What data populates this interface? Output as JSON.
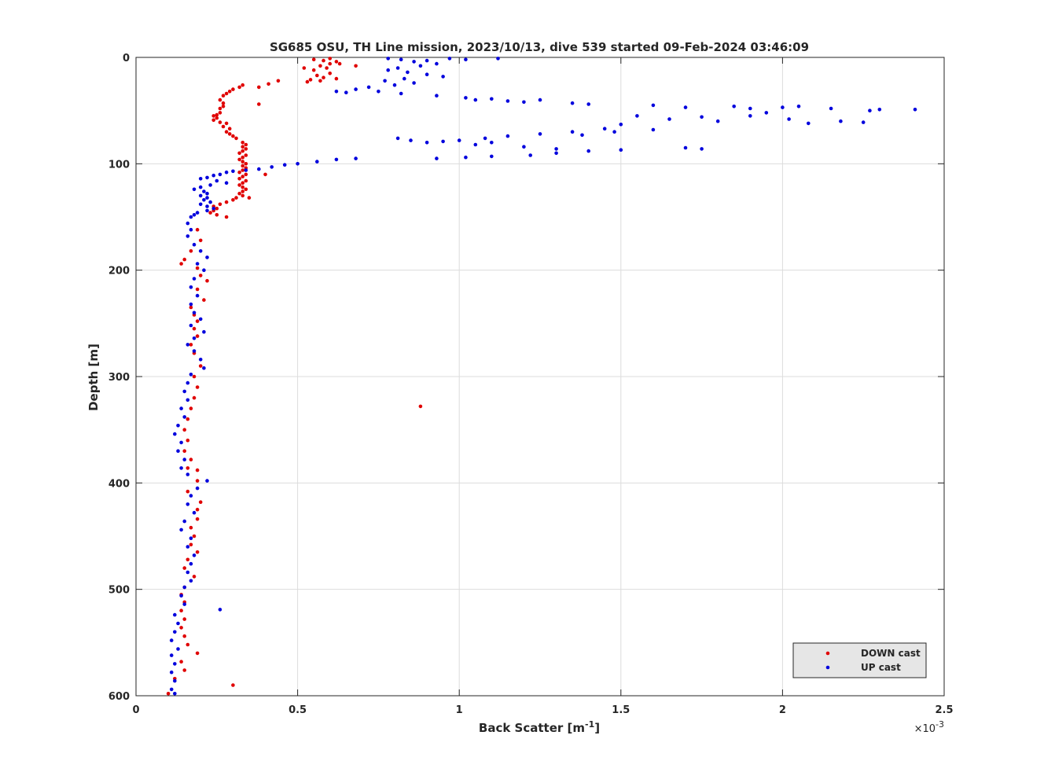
{
  "chart_data": {
    "type": "scatter",
    "title": "SG685 OSU, TH Line mission, 2023/10/13, dive 539 started 09-Feb-2024 03:46:09",
    "xlabel": "Back Scatter [m",
    "xlabel_sup": "-1",
    "xlabel_close": "]",
    "ylabel": "Depth [m]",
    "x_multiplier_base": "×10",
    "x_multiplier_exp": "-3",
    "xlim": [
      0,
      2.5
    ],
    "ylim": [
      0,
      600
    ],
    "y_reversed": true,
    "xticks": [
      0,
      0.5,
      1,
      1.5,
      2,
      2.5
    ],
    "xtick_labels": [
      "0",
      "0.5",
      "1",
      "1.5",
      "2",
      "2.5"
    ],
    "yticks": [
      0,
      100,
      200,
      300,
      400,
      500,
      600
    ],
    "ytick_labels": [
      "0",
      "100",
      "200",
      "300",
      "400",
      "500",
      "600"
    ],
    "grid": true,
    "legend_position": "bottom-right",
    "series": [
      {
        "name": "DOWN cast",
        "color": "#e00000",
        "points": [
          [
            0.55,
            2
          ],
          [
            0.58,
            3
          ],
          [
            0.6,
            1
          ],
          [
            0.62,
            4
          ],
          [
            0.6,
            6
          ],
          [
            0.57,
            8
          ],
          [
            0.52,
            10
          ],
          [
            0.55,
            12
          ],
          [
            0.63,
            6
          ],
          [
            0.68,
            8
          ],
          [
            0.59,
            10
          ],
          [
            0.6,
            15
          ],
          [
            0.56,
            17
          ],
          [
            0.58,
            19
          ],
          [
            0.54,
            21
          ],
          [
            0.53,
            23
          ],
          [
            0.57,
            22
          ],
          [
            0.62,
            20
          ],
          [
            0.44,
            22
          ],
          [
            0.41,
            25
          ],
          [
            0.38,
            28
          ],
          [
            0.33,
            26
          ],
          [
            0.32,
            28
          ],
          [
            0.3,
            30
          ],
          [
            0.29,
            32
          ],
          [
            0.28,
            34
          ],
          [
            0.27,
            36
          ],
          [
            0.26,
            40
          ],
          [
            0.27,
            43
          ],
          [
            0.38,
            44
          ],
          [
            0.27,
            46
          ],
          [
            0.26,
            48
          ],
          [
            0.26,
            52
          ],
          [
            0.25,
            54
          ],
          [
            0.24,
            55
          ],
          [
            0.25,
            57
          ],
          [
            0.24,
            59
          ],
          [
            0.26,
            61
          ],
          [
            0.28,
            62
          ],
          [
            0.27,
            65
          ],
          [
            0.29,
            67
          ],
          [
            0.28,
            70
          ],
          [
            0.29,
            72
          ],
          [
            0.3,
            74
          ],
          [
            0.31,
            76
          ],
          [
            0.33,
            80
          ],
          [
            0.34,
            82
          ],
          [
            0.33,
            84
          ],
          [
            0.34,
            86
          ],
          [
            0.33,
            88
          ],
          [
            0.32,
            90
          ],
          [
            0.34,
            92
          ],
          [
            0.33,
            94
          ],
          [
            0.32,
            96
          ],
          [
            0.33,
            98
          ],
          [
            0.34,
            100
          ],
          [
            0.33,
            102
          ],
          [
            0.34,
            104
          ],
          [
            0.33,
            106
          ],
          [
            0.32,
            108
          ],
          [
            0.34,
            110
          ],
          [
            0.33,
            112
          ],
          [
            0.32,
            114
          ],
          [
            0.34,
            116
          ],
          [
            0.33,
            118
          ],
          [
            0.32,
            120
          ],
          [
            0.33,
            122
          ],
          [
            0.34,
            124
          ],
          [
            0.33,
            126
          ],
          [
            0.32,
            128
          ],
          [
            0.33,
            130
          ],
          [
            0.31,
            132
          ],
          [
            0.3,
            134
          ],
          [
            0.28,
            136
          ],
          [
            0.26,
            138
          ],
          [
            0.24,
            140
          ],
          [
            0.25,
            142
          ],
          [
            0.24,
            144
          ],
          [
            0.23,
            146
          ],
          [
            0.25,
            148
          ],
          [
            0.28,
            150
          ],
          [
            0.35,
            132
          ],
          [
            0.4,
            110
          ],
          [
            0.19,
            162
          ],
          [
            0.2,
            172
          ],
          [
            0.17,
            182
          ],
          [
            0.15,
            190
          ],
          [
            0.14,
            194
          ],
          [
            0.19,
            198
          ],
          [
            0.2,
            205
          ],
          [
            0.22,
            210
          ],
          [
            0.19,
            218
          ],
          [
            0.21,
            228
          ],
          [
            0.17,
            235
          ],
          [
            0.18,
            242
          ],
          [
            0.19,
            248
          ],
          [
            0.18,
            255
          ],
          [
            0.19,
            262
          ],
          [
            0.17,
            270
          ],
          [
            0.18,
            278
          ],
          [
            0.2,
            290
          ],
          [
            0.18,
            300
          ],
          [
            0.19,
            310
          ],
          [
            0.18,
            320
          ],
          [
            0.17,
            330
          ],
          [
            0.16,
            340
          ],
          [
            0.15,
            350
          ],
          [
            0.16,
            360
          ],
          [
            0.15,
            370
          ],
          [
            0.17,
            378
          ],
          [
            0.16,
            386
          ],
          [
            0.19,
            388
          ],
          [
            0.19,
            398
          ],
          [
            0.16,
            408
          ],
          [
            0.2,
            418
          ],
          [
            0.19,
            425
          ],
          [
            0.19,
            434
          ],
          [
            0.17,
            442
          ],
          [
            0.18,
            450
          ],
          [
            0.17,
            458
          ],
          [
            0.19,
            465
          ],
          [
            0.16,
            472
          ],
          [
            0.15,
            480
          ],
          [
            0.18,
            488
          ],
          [
            0.15,
            498
          ],
          [
            0.14,
            505
          ],
          [
            0.15,
            512
          ],
          [
            0.14,
            520
          ],
          [
            0.15,
            528
          ],
          [
            0.14,
            536
          ],
          [
            0.15,
            544
          ],
          [
            0.16,
            552
          ],
          [
            0.19,
            560
          ],
          [
            0.14,
            568
          ],
          [
            0.15,
            576
          ],
          [
            0.12,
            584
          ],
          [
            0.3,
            590
          ],
          [
            0.1,
            598
          ],
          [
            0.88,
            328
          ]
        ]
      },
      {
        "name": "UP cast",
        "color": "#0000dd",
        "points": [
          [
            0.78,
            1
          ],
          [
            0.82,
            2
          ],
          [
            0.9,
            3
          ],
          [
            0.97,
            1
          ],
          [
            1.02,
            2
          ],
          [
            1.12,
            1
          ],
          [
            0.86,
            4
          ],
          [
            0.93,
            6
          ],
          [
            0.88,
            8
          ],
          [
            0.81,
            10
          ],
          [
            0.78,
            12
          ],
          [
            0.84,
            14
          ],
          [
            0.9,
            16
          ],
          [
            0.95,
            18
          ],
          [
            0.83,
            20
          ],
          [
            0.77,
            22
          ],
          [
            0.86,
            24
          ],
          [
            0.8,
            26
          ],
          [
            0.72,
            28
          ],
          [
            0.68,
            30
          ],
          [
            0.75,
            32
          ],
          [
            0.65,
            33
          ],
          [
            0.62,
            32
          ],
          [
            0.82,
            34
          ],
          [
            0.93,
            36
          ],
          [
            1.02,
            38
          ],
          [
            1.05,
            40
          ],
          [
            1.1,
            39
          ],
          [
            1.15,
            41
          ],
          [
            1.2,
            42
          ],
          [
            1.25,
            40
          ],
          [
            1.35,
            43
          ],
          [
            1.4,
            44
          ],
          [
            1.6,
            45
          ],
          [
            1.7,
            47
          ],
          [
            1.85,
            46
          ],
          [
            1.9,
            48
          ],
          [
            2.0,
            47
          ],
          [
            2.05,
            46
          ],
          [
            2.15,
            48
          ],
          [
            2.3,
            49
          ],
          [
            2.41,
            49
          ],
          [
            1.55,
            55
          ],
          [
            1.65,
            58
          ],
          [
            1.75,
            56
          ],
          [
            1.8,
            60
          ],
          [
            1.9,
            55
          ],
          [
            1.95,
            52
          ],
          [
            2.02,
            58
          ],
          [
            2.08,
            62
          ],
          [
            2.18,
            60
          ],
          [
            2.25,
            61
          ],
          [
            2.27,
            50
          ],
          [
            1.5,
            63
          ],
          [
            1.45,
            67
          ],
          [
            1.35,
            70
          ],
          [
            1.25,
            72
          ],
          [
            1.15,
            74
          ],
          [
            1.08,
            76
          ],
          [
            1.0,
            78
          ],
          [
            0.95,
            79
          ],
          [
            0.9,
            80
          ],
          [
            0.85,
            78
          ],
          [
            0.81,
            76
          ],
          [
            1.1,
            80
          ],
          [
            1.05,
            82
          ],
          [
            1.2,
            84
          ],
          [
            1.3,
            86
          ],
          [
            1.4,
            88
          ],
          [
            1.5,
            87
          ],
          [
            1.7,
            85
          ],
          [
            1.75,
            86
          ],
          [
            1.6,
            68
          ],
          [
            1.48,
            70
          ],
          [
            1.38,
            73
          ],
          [
            1.3,
            90
          ],
          [
            1.22,
            92
          ],
          [
            1.1,
            93
          ],
          [
            1.02,
            94
          ],
          [
            0.93,
            95
          ],
          [
            0.68,
            95
          ],
          [
            0.62,
            96
          ],
          [
            0.56,
            98
          ],
          [
            0.5,
            100
          ],
          [
            0.46,
            101
          ],
          [
            0.42,
            103
          ],
          [
            0.38,
            105
          ],
          [
            0.34,
            106
          ],
          [
            0.3,
            107
          ],
          [
            0.28,
            108
          ],
          [
            0.26,
            110
          ],
          [
            0.24,
            111
          ],
          [
            0.22,
            113
          ],
          [
            0.2,
            114
          ],
          [
            0.25,
            116
          ],
          [
            0.28,
            118
          ],
          [
            0.23,
            120
          ],
          [
            0.2,
            122
          ],
          [
            0.18,
            124
          ],
          [
            0.21,
            126
          ],
          [
            0.22,
            128
          ],
          [
            0.2,
            130
          ],
          [
            0.22,
            132
          ],
          [
            0.21,
            134
          ],
          [
            0.23,
            136
          ],
          [
            0.2,
            138
          ],
          [
            0.22,
            140
          ],
          [
            0.24,
            142
          ],
          [
            0.22,
            144
          ],
          [
            0.19,
            146
          ],
          [
            0.18,
            148
          ],
          [
            0.17,
            150
          ],
          [
            0.16,
            156
          ],
          [
            0.17,
            162
          ],
          [
            0.16,
            168
          ],
          [
            0.18,
            176
          ],
          [
            0.2,
            182
          ],
          [
            0.22,
            188
          ],
          [
            0.19,
            194
          ],
          [
            0.21,
            200
          ],
          [
            0.18,
            208
          ],
          [
            0.17,
            216
          ],
          [
            0.19,
            224
          ],
          [
            0.17,
            232
          ],
          [
            0.18,
            240
          ],
          [
            0.2,
            246
          ],
          [
            0.17,
            252
          ],
          [
            0.21,
            258
          ],
          [
            0.18,
            264
          ],
          [
            0.16,
            270
          ],
          [
            0.18,
            276
          ],
          [
            0.2,
            284
          ],
          [
            0.21,
            292
          ],
          [
            0.17,
            298
          ],
          [
            0.16,
            306
          ],
          [
            0.15,
            314
          ],
          [
            0.16,
            322
          ],
          [
            0.14,
            330
          ],
          [
            0.15,
            338
          ],
          [
            0.13,
            346
          ],
          [
            0.12,
            354
          ],
          [
            0.14,
            362
          ],
          [
            0.13,
            370
          ],
          [
            0.15,
            378
          ],
          [
            0.14,
            386
          ],
          [
            0.16,
            392
          ],
          [
            0.22,
            398
          ],
          [
            0.19,
            405
          ],
          [
            0.17,
            412
          ],
          [
            0.16,
            420
          ],
          [
            0.18,
            428
          ],
          [
            0.15,
            436
          ],
          [
            0.14,
            444
          ],
          [
            0.17,
            452
          ],
          [
            0.16,
            460
          ],
          [
            0.18,
            468
          ],
          [
            0.17,
            476
          ],
          [
            0.16,
            484
          ],
          [
            0.17,
            492
          ],
          [
            0.15,
            498
          ],
          [
            0.14,
            506
          ],
          [
            0.15,
            514
          ],
          [
            0.26,
            519
          ],
          [
            0.12,
            524
          ],
          [
            0.13,
            532
          ],
          [
            0.12,
            540
          ],
          [
            0.11,
            548
          ],
          [
            0.13,
            556
          ],
          [
            0.11,
            562
          ],
          [
            0.12,
            570
          ],
          [
            0.11,
            578
          ],
          [
            0.12,
            586
          ],
          [
            0.11,
            594
          ],
          [
            0.12,
            598
          ]
        ]
      }
    ]
  }
}
